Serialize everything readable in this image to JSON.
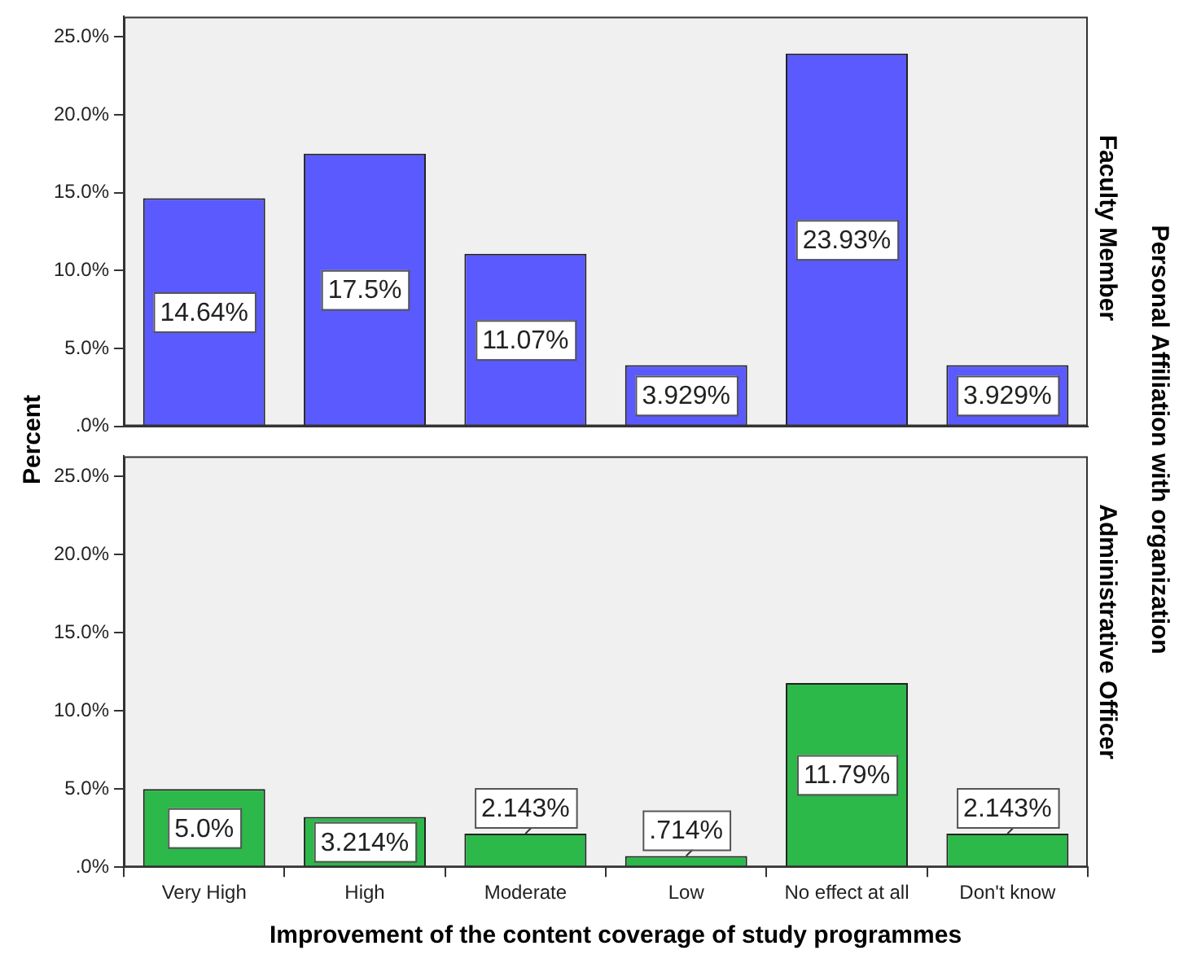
{
  "chart_data": [
    {
      "type": "bar",
      "y2label": "Faculty Member",
      "ylabel": "Percent",
      "annotations": [
        "Personal Affiliation with organization"
      ],
      "categories": [
        null,
        null,
        null,
        null,
        null,
        null
      ],
      "values": [
        14.64,
        17.5,
        11.07,
        3.929,
        23.93,
        3.929
      ],
      "value_labels": [
        "14.64%",
        "17.5%",
        "11.07%",
        "3.929%",
        "23.93%",
        "3.929%"
      ],
      "color": "#5a5aff",
      "ylim": [
        0,
        26.3
      ],
      "yticks": [
        {
          "value": 0,
          "label": ".0%"
        },
        {
          "value": 5,
          "label": "5.0%"
        },
        {
          "value": 10,
          "label": "10.0%"
        },
        {
          "value": 15,
          "label": "15.0%"
        },
        {
          "value": 20,
          "label": "20.0%"
        },
        {
          "value": 25,
          "label": "25.0%"
        }
      ],
      "tick_labels": "y",
      "grid": false,
      "legend": false
    },
    {
      "type": "bar",
      "y2label": "Administrative Officer",
      "xlabel": "Improvement of the content coverage of study programmes",
      "categories": [
        "Very High",
        "High",
        "Moderate",
        "Low",
        "No effect at all",
        "Don't know"
      ],
      "values": [
        5.0,
        3.214,
        2.143,
        0.714,
        11.79,
        2.143
      ],
      "value_labels": [
        "5.0%",
        "3.214%",
        "2.143%",
        ".714%",
        "11.79%",
        "2.143%"
      ],
      "color": "#2db84a",
      "ylim": [
        0,
        26.3
      ],
      "yticks": [
        {
          "value": 0,
          "label": ".0%"
        },
        {
          "value": 5,
          "label": "5.0%"
        },
        {
          "value": 10,
          "label": "10.0%"
        },
        {
          "value": 15,
          "label": "15.0%"
        },
        {
          "value": 20,
          "label": "20.0%"
        },
        {
          "value": 25,
          "label": "25.0%"
        }
      ],
      "grid": false,
      "legend": false
    }
  ]
}
